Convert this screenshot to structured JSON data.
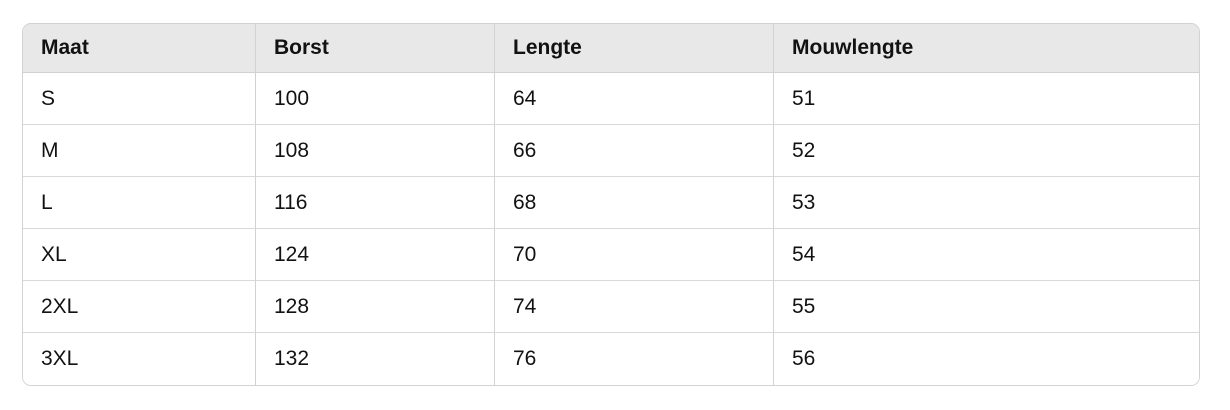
{
  "table": {
    "headers": [
      "Maat",
      "Borst",
      "Lengte",
      "Mouwlengte"
    ],
    "rows": [
      [
        "S",
        "100",
        "64",
        "51"
      ],
      [
        "M",
        "108",
        "66",
        "52"
      ],
      [
        "L",
        "116",
        "68",
        "53"
      ],
      [
        "XL",
        "124",
        "70",
        "54"
      ],
      [
        "2XL",
        "128",
        "74",
        "55"
      ],
      [
        "3XL",
        "132",
        "76",
        "56"
      ]
    ]
  },
  "chart_data": {
    "type": "table",
    "title": "",
    "columns": [
      "Maat",
      "Borst",
      "Lengte",
      "Mouwlengte"
    ],
    "rows": [
      [
        "S",
        100,
        64,
        51
      ],
      [
        "M",
        108,
        66,
        52
      ],
      [
        "L",
        116,
        68,
        53
      ],
      [
        "XL",
        124,
        70,
        54
      ],
      [
        "2XL",
        128,
        74,
        55
      ],
      [
        "3XL",
        132,
        76,
        56
      ]
    ]
  },
  "colors": {
    "header_background": "#e8e8e8",
    "border_outer": "#d2d2d2",
    "border_row": "#d9d9d9",
    "text": "#111213",
    "page_background": "#ffffff"
  }
}
